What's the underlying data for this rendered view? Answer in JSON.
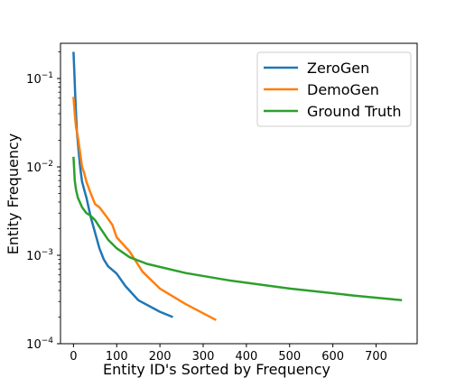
{
  "chart_data": {
    "type": "line",
    "title": "",
    "xlabel": "Entity ID's Sorted by Frequency",
    "ylabel": "Entity Frequency",
    "xlim": [
      -30,
      795
    ],
    "ylim": [
      0.0001,
      0.25
    ],
    "yscale": "log",
    "grid": false,
    "legend_position": "top-right",
    "x_ticks": [
      0,
      100,
      200,
      300,
      400,
      500,
      600,
      700
    ],
    "y_ticks": [
      {
        "value": 0.0001,
        "base": "10",
        "exp": "−4"
      },
      {
        "value": 0.001,
        "base": "10",
        "exp": "−3"
      },
      {
        "value": 0.01,
        "base": "10",
        "exp": "−2"
      },
      {
        "value": 0.1,
        "base": "10",
        "exp": "−1"
      }
    ],
    "series": [
      {
        "name": "ZeroGen",
        "color": "#1f77b4",
        "x": [
          0,
          2,
          4,
          6,
          8,
          12,
          16,
          20,
          25,
          30,
          40,
          50,
          60,
          70,
          80,
          100,
          120,
          150,
          200,
          230
        ],
        "y": [
          0.2,
          0.12,
          0.065,
          0.04,
          0.025,
          0.015,
          0.0095,
          0.0068,
          0.0055,
          0.0045,
          0.0027,
          0.0018,
          0.0012,
          0.0009,
          0.00075,
          0.00062,
          0.00045,
          0.00031,
          0.00023,
          0.0002
        ]
      },
      {
        "name": "DemoGen",
        "color": "#ff7f0e",
        "x": [
          0,
          3,
          6,
          10,
          15,
          20,
          25,
          30,
          40,
          50,
          60,
          75,
          90,
          100,
          130,
          160,
          200,
          260,
          330
        ],
        "y": [
          0.062,
          0.04,
          0.028,
          0.022,
          0.015,
          0.01,
          0.0085,
          0.0068,
          0.005,
          0.0038,
          0.0035,
          0.0028,
          0.0022,
          0.0016,
          0.0011,
          0.00065,
          0.00042,
          0.00028,
          0.000185
        ]
      },
      {
        "name": "Ground Truth",
        "color": "#2ca02c",
        "x": [
          0,
          3,
          6,
          10,
          20,
          30,
          40,
          50,
          60,
          80,
          100,
          130,
          170,
          260,
          360,
          500,
          650,
          760
        ],
        "y": [
          0.013,
          0.007,
          0.0055,
          0.0045,
          0.0035,
          0.003,
          0.0028,
          0.0025,
          0.0021,
          0.0015,
          0.0012,
          0.00095,
          0.0008,
          0.00063,
          0.00052,
          0.00042,
          0.00035,
          0.00031
        ]
      }
    ]
  }
}
